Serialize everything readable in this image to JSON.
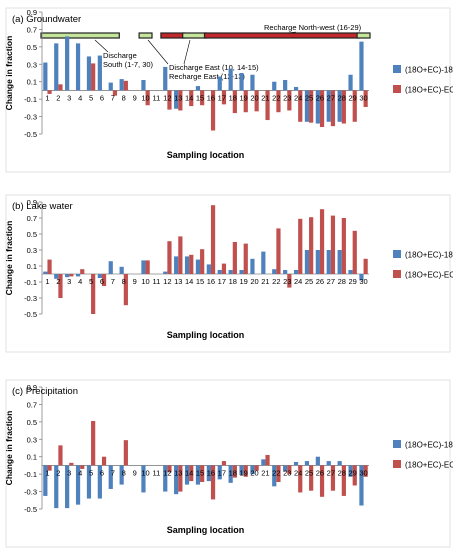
{
  "colors": {
    "s1": "#4f81bd",
    "s2": "#c0504d",
    "axis": "#868686",
    "grid": "#d9d9d9",
    "band_fill_green": "#c4e59b",
    "band_fill_red": "#c0282b",
    "band_edge": "#222222"
  },
  "ylabel": "Change in fraction",
  "xlabel": "Sampling location",
  "legend": [
    "(18O+EC)-18O",
    "(18O+EC)-EC"
  ],
  "band_annotations": {
    "discharge_south": "Discharge South (1-7, 30)",
    "discharge_east": "Discharge East (10, 14-15)",
    "recharge_east": "Recharge East (12-13)",
    "recharge_northwest": "Recharge North-west (16-29)"
  },
  "chart_data": [
    {
      "type": "bar",
      "title": "(a) Groundwater",
      "xlabel": "Sampling location",
      "ylabel": "Change in fraction",
      "ylim": [
        -0.5,
        0.9
      ],
      "yticks": [
        -0.5,
        -0.3,
        -0.1,
        0.1,
        0.3,
        0.5,
        0.7,
        0.9
      ],
      "categories": [
        "1",
        "2",
        "3",
        "4",
        "5",
        "6",
        "7",
        "8",
        "9",
        "10",
        "11",
        "12",
        "13",
        "14",
        "15",
        "16",
        "17",
        "18",
        "19",
        "20",
        "21",
        "22",
        "23",
        "24",
        "25",
        "26",
        "27",
        "28",
        "29",
        "30"
      ],
      "legend_position": "right",
      "series": [
        {
          "name": "(18O+EC)-18O",
          "values": [
            0.32,
            0.54,
            0.62,
            0.54,
            0.39,
            0.4,
            0.09,
            0.13,
            0.0,
            0.12,
            0.0,
            0.27,
            -0.21,
            0.0,
            0.05,
            0.0,
            0.16,
            0.25,
            0.2,
            0.18,
            0.0,
            0.1,
            0.12,
            0.04,
            -0.36,
            -0.38,
            -0.36,
            -0.36,
            0.18,
            0.56
          ]
        },
        {
          "name": "(18O+EC)-EC",
          "values": [
            -0.04,
            0.07,
            0.0,
            0.0,
            0.31,
            0.0,
            -0.06,
            0.11,
            0.0,
            -0.17,
            0.0,
            -0.22,
            -0.23,
            -0.18,
            -0.17,
            -0.46,
            -0.16,
            -0.26,
            -0.25,
            -0.24,
            -0.34,
            -0.25,
            -0.23,
            -0.36,
            -0.37,
            -0.42,
            -0.41,
            -0.38,
            -0.36,
            -0.19
          ]
        }
      ]
    },
    {
      "type": "bar",
      "title": "(b) Lake water",
      "xlabel": "Sampling location",
      "ylabel": "Change in fraction",
      "ylim": [
        -0.5,
        0.9
      ],
      "yticks": [
        -0.5,
        -0.3,
        -0.1,
        0.1,
        0.3,
        0.5,
        0.7,
        0.9
      ],
      "categories": [
        "1",
        "2",
        "3",
        "4",
        "5",
        "6",
        "7",
        "8",
        "9",
        "10",
        "11",
        "12",
        "13",
        "14",
        "15",
        "16",
        "17",
        "18",
        "19",
        "20",
        "21",
        "22",
        "23",
        "24",
        "25",
        "26",
        "27",
        "28",
        "29",
        "30"
      ],
      "legend_position": "right",
      "series": [
        {
          "name": "(18O+EC)-18O",
          "values": [
            0.03,
            -0.06,
            -0.04,
            -0.03,
            0.0,
            -0.05,
            0.16,
            0.09,
            0.0,
            0.17,
            0.0,
            0.03,
            0.22,
            0.22,
            0.18,
            0.12,
            0.05,
            0.05,
            0.05,
            0.19,
            0.28,
            0.06,
            0.05,
            0.05,
            0.3,
            0.3,
            0.3,
            0.3,
            0.05,
            -0.08
          ]
        },
        {
          "name": "(18O+EC)-EC",
          "values": [
            0.18,
            -0.3,
            -0.03,
            0.06,
            -0.5,
            -0.15,
            0.0,
            -0.39,
            0.0,
            0.17,
            0.0,
            0.41,
            0.47,
            0.24,
            0.31,
            0.86,
            0.13,
            0.4,
            0.38,
            0.0,
            0.0,
            0.57,
            -0.17,
            0.69,
            0.71,
            0.81,
            0.73,
            0.7,
            0.54,
            0.19
          ]
        }
      ]
    },
    {
      "type": "bar",
      "title": "(c) Precipitation",
      "xlabel": "Sampling location",
      "ylabel": "Change in fraction",
      "ylim": [
        -0.5,
        0.9
      ],
      "yticks": [
        -0.5,
        -0.3,
        -0.1,
        0.1,
        0.3,
        0.5,
        0.7,
        0.9
      ],
      "categories": [
        "1",
        "2",
        "3",
        "4",
        "5",
        "6",
        "7",
        "8",
        "9",
        "10",
        "11",
        "12",
        "13",
        "14",
        "15",
        "16",
        "17",
        "18",
        "19",
        "20",
        "21",
        "22",
        "23",
        "24",
        "25",
        "26",
        "27",
        "28",
        "29",
        "30"
      ],
      "legend_position": "right",
      "series": [
        {
          "name": "(18O+EC)-18O",
          "values": [
            -0.35,
            -0.49,
            -0.49,
            -0.45,
            -0.38,
            -0.38,
            -0.27,
            -0.22,
            0.0,
            -0.31,
            0.0,
            -0.3,
            -0.33,
            -0.22,
            -0.22,
            -0.18,
            -0.16,
            -0.2,
            -0.11,
            -0.1,
            0.07,
            -0.24,
            -0.07,
            0.04,
            0.05,
            0.1,
            0.05,
            0.05,
            -0.13,
            -0.46
          ]
        },
        {
          "name": "(18O+EC)-EC",
          "values": [
            -0.06,
            0.23,
            0.03,
            -0.04,
            0.51,
            0.1,
            0.0,
            0.29,
            0.0,
            0.0,
            0.0,
            -0.08,
            -0.3,
            -0.18,
            -0.19,
            -0.39,
            0.05,
            -0.14,
            -0.13,
            -0.06,
            0.12,
            -0.19,
            -0.1,
            -0.31,
            -0.29,
            -0.36,
            -0.29,
            -0.35,
            -0.23,
            -0.13
          ]
        }
      ]
    }
  ]
}
